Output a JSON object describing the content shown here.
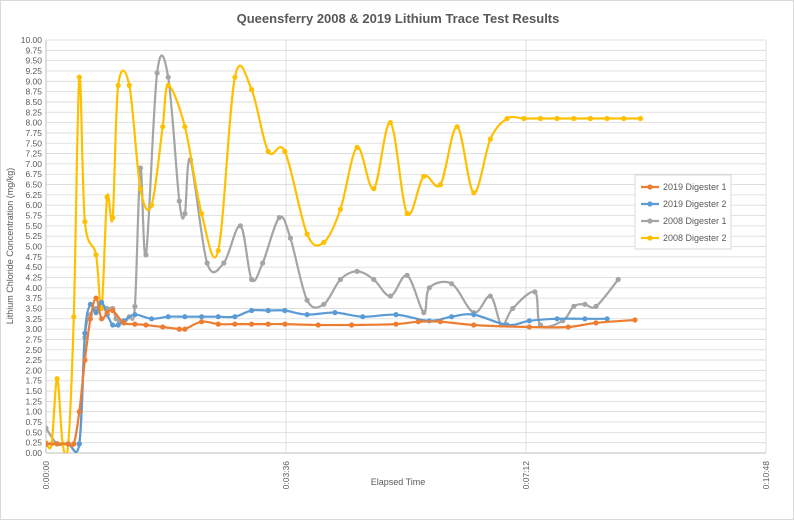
{
  "chart_data": {
    "type": "line",
    "title": "Queensferry 2008 & 2019 Lithium Trace Test Results",
    "xlabel": "Elapsed Time",
    "ylabel": "Lithium Chloride Concentration (mg/kg)",
    "x_unit": "minutes",
    "xlim": [
      0,
      648
    ],
    "ylim": [
      0,
      10
    ],
    "xticks": [
      "0:00:00",
      "0:03:36",
      "0:07:12",
      "0:10:48"
    ],
    "yticks": [
      "0.00",
      "0.25",
      "0.50",
      "0.75",
      "1.00",
      "1.25",
      "1.50",
      "1.75",
      "2.00",
      "2.25",
      "2.50",
      "2.75",
      "3.00",
      "3.25",
      "3.50",
      "3.75",
      "4.00",
      "4.25",
      "4.50",
      "4.75",
      "5.00",
      "5.25",
      "5.50",
      "5.75",
      "6.00",
      "6.25",
      "6.50",
      "6.75",
      "7.00",
      "7.25",
      "7.50",
      "7.75",
      "8.00",
      "8.25",
      "8.50",
      "8.75",
      "9.00",
      "9.25",
      "9.50",
      "9.75",
      "10.00"
    ],
    "grid": true,
    "legend_position": "right",
    "series": [
      {
        "name": "2019 Digester 1",
        "color": "#ED7D31",
        "x": [
          0,
          10,
          20,
          25,
          30,
          35,
          40,
          45,
          50,
          55,
          60,
          70,
          80,
          90,
          105,
          120,
          125,
          140,
          155,
          170,
          185,
          200,
          215,
          245,
          275,
          315,
          335,
          355,
          385,
          435,
          470,
          495,
          530
        ],
        "y": [
          0.22,
          0.22,
          0.22,
          0.22,
          1.0,
          2.25,
          3.25,
          3.75,
          3.25,
          3.4,
          3.45,
          3.15,
          3.12,
          3.1,
          3.05,
          3.0,
          3.0,
          3.18,
          3.12,
          3.12,
          3.12,
          3.12,
          3.12,
          3.1,
          3.1,
          3.12,
          3.18,
          3.18,
          3.1,
          3.05,
          3.05,
          3.15,
          3.22
        ]
      },
      {
        "name": "2019 Digester 2",
        "color": "#5B9BD5",
        "x": [
          0,
          10,
          20,
          30,
          35,
          40,
          45,
          50,
          55,
          60,
          65,
          70,
          80,
          95,
          110,
          125,
          140,
          155,
          170,
          185,
          200,
          215,
          235,
          260,
          285,
          315,
          345,
          365,
          385,
          415,
          435,
          460,
          485,
          505
        ],
        "y": [
          0.22,
          0.22,
          0.22,
          0.22,
          2.9,
          3.6,
          3.4,
          3.65,
          3.35,
          3.1,
          3.1,
          3.2,
          3.35,
          3.25,
          3.3,
          3.3,
          3.3,
          3.3,
          3.3,
          3.45,
          3.45,
          3.45,
          3.35,
          3.4,
          3.3,
          3.35,
          3.2,
          3.3,
          3.35,
          3.1,
          3.2,
          3.25,
          3.25,
          3.25
        ]
      },
      {
        "name": "2008 Digester 1",
        "color": "#A5A5A5",
        "x": [
          0,
          10,
          20,
          30,
          35,
          40,
          45,
          50,
          55,
          60,
          63,
          66,
          70,
          75,
          80,
          85,
          90,
          100,
          110,
          120,
          125,
          130,
          145,
          160,
          175,
          185,
          195,
          210,
          220,
          235,
          250,
          265,
          280,
          295,
          310,
          325,
          340,
          345,
          365,
          385,
          400,
          410,
          420,
          440,
          445,
          465,
          475,
          485,
          495,
          515
        ],
        "y": [
          0.6,
          0.22,
          0.22,
          0.22,
          2.8,
          3.35,
          3.5,
          3.6,
          3.5,
          3.5,
          3.25,
          3.2,
          3.15,
          3.3,
          3.55,
          6.9,
          4.8,
          9.2,
          9.1,
          6.1,
          5.8,
          7.1,
          4.6,
          4.6,
          5.5,
          4.2,
          4.6,
          5.7,
          5.2,
          3.7,
          3.6,
          4.2,
          4.4,
          4.2,
          3.8,
          4.3,
          3.4,
          4.0,
          4.1,
          3.4,
          3.8,
          3.1,
          3.5,
          3.9,
          3.1,
          3.2,
          3.55,
          3.6,
          3.55,
          4.2
        ]
      },
      {
        "name": "2008 Digester 2",
        "color": "#FFC000",
        "x": [
          0,
          5,
          10,
          15,
          20,
          25,
          30,
          35,
          45,
          50,
          55,
          60,
          65,
          75,
          85,
          95,
          105,
          110,
          125,
          140,
          155,
          170,
          185,
          200,
          215,
          235,
          250,
          265,
          280,
          295,
          310,
          325,
          340,
          355,
          370,
          385,
          400,
          415,
          430,
          445,
          460,
          475,
          490,
          505,
          520,
          535
        ],
        "y": [
          0.25,
          0.22,
          1.8,
          0.22,
          0.22,
          3.3,
          9.1,
          5.6,
          4.8,
          3.5,
          6.2,
          5.7,
          8.9,
          8.9,
          6.4,
          6.0,
          7.9,
          8.9,
          7.9,
          5.8,
          4.9,
          9.1,
          8.8,
          7.3,
          7.3,
          5.3,
          5.1,
          5.9,
          7.4,
          6.4,
          8.0,
          5.8,
          6.7,
          6.5,
          7.9,
          6.3,
          7.6,
          8.1,
          8.1,
          8.1,
          8.1,
          8.1,
          8.1,
          8.1,
          8.1,
          8.1
        ]
      }
    ]
  }
}
